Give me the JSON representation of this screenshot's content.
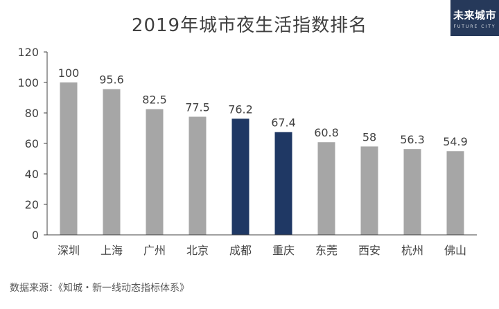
{
  "chart_data": {
    "type": "bar",
    "title": "2019年城市夜生活指数排名",
    "categories": [
      "深圳",
      "上海",
      "广州",
      "北京",
      "成都",
      "重庆",
      "东莞",
      "西安",
      "杭州",
      "佛山"
    ],
    "values": [
      100,
      95.6,
      82.5,
      77.5,
      76.2,
      67.4,
      60.8,
      58,
      56.3,
      54.9
    ],
    "highlight": [
      "成都",
      "重庆"
    ],
    "ylim": [
      0,
      120
    ],
    "yticks": [
      0,
      20,
      40,
      60,
      80,
      100,
      120
    ],
    "xlabel": "",
    "ylabel": "",
    "grid": false,
    "colors": {
      "bar": "#a6a6a6",
      "highlight": "#1f3864",
      "axis": "#404040"
    }
  },
  "logo": {
    "text": "未来城市",
    "sub": "FUTURE CITY"
  },
  "source": "数据来源：《知城・新一线动态指标体系》"
}
